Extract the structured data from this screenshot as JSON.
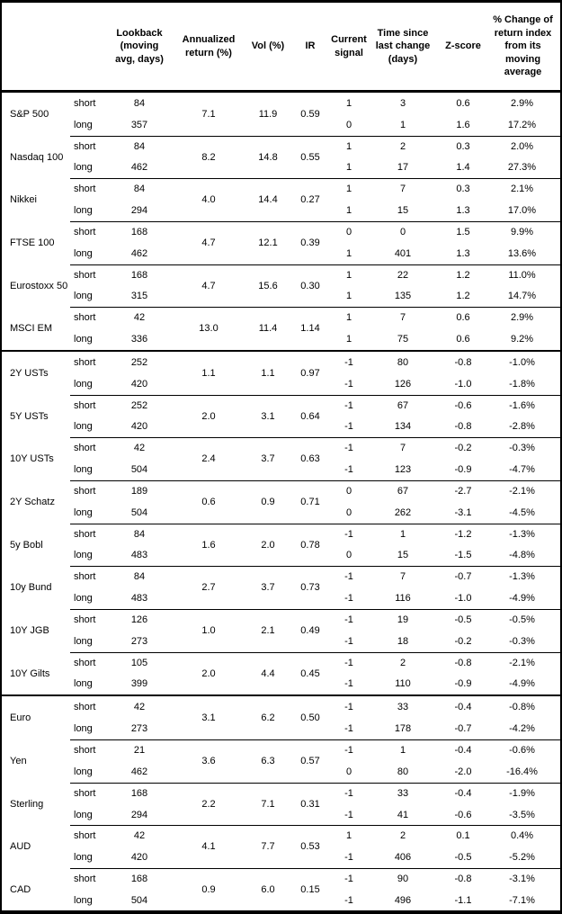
{
  "colors": {
    "text": "#000000",
    "background": "#ffffff",
    "border": "#000000"
  },
  "table": {
    "header": {
      "asset": "",
      "leg": "",
      "lookback": "Lookback (moving avg, days)",
      "annualized_return": "Annualized return (%)",
      "vol": "Vol (%)",
      "ir": "IR",
      "current_signal": "Current signal",
      "time_since": "Time since last change (days)",
      "zscore": "Z-score",
      "pct_change": "% Change of return index from its moving average"
    },
    "sections": [
      {
        "assets": [
          {
            "name": "S&P 500",
            "annualized_return": "7.1",
            "vol": "11.9",
            "ir": "0.59",
            "rows": [
              {
                "leg": "short",
                "lookback": "84",
                "signal": "1",
                "time_since": "3",
                "zscore": "0.6",
                "pct_change": "2.9%"
              },
              {
                "leg": "long",
                "lookback": "357",
                "signal": "0",
                "time_since": "1",
                "zscore": "1.6",
                "pct_change": "17.2%"
              }
            ]
          },
          {
            "name": "Nasdaq 100",
            "annualized_return": "8.2",
            "vol": "14.8",
            "ir": "0.55",
            "rows": [
              {
                "leg": "short",
                "lookback": "84",
                "signal": "1",
                "time_since": "2",
                "zscore": "0.3",
                "pct_change": "2.0%"
              },
              {
                "leg": "long",
                "lookback": "462",
                "signal": "1",
                "time_since": "17",
                "zscore": "1.4",
                "pct_change": "27.3%"
              }
            ]
          },
          {
            "name": "Nikkei",
            "annualized_return": "4.0",
            "vol": "14.4",
            "ir": "0.27",
            "rows": [
              {
                "leg": "short",
                "lookback": "84",
                "signal": "1",
                "time_since": "7",
                "zscore": "0.3",
                "pct_change": "2.1%"
              },
              {
                "leg": "long",
                "lookback": "294",
                "signal": "1",
                "time_since": "15",
                "zscore": "1.3",
                "pct_change": "17.0%"
              }
            ]
          },
          {
            "name": "FTSE 100",
            "annualized_return": "4.7",
            "vol": "12.1",
            "ir": "0.39",
            "rows": [
              {
                "leg": "short",
                "lookback": "168",
                "signal": "0",
                "time_since": "0",
                "zscore": "1.5",
                "pct_change": "9.9%"
              },
              {
                "leg": "long",
                "lookback": "462",
                "signal": "1",
                "time_since": "401",
                "zscore": "1.3",
                "pct_change": "13.6%"
              }
            ]
          },
          {
            "name": "Eurostoxx 50",
            "annualized_return": "4.7",
            "vol": "15.6",
            "ir": "0.30",
            "rows": [
              {
                "leg": "short",
                "lookback": "168",
                "signal": "1",
                "time_since": "22",
                "zscore": "1.2",
                "pct_change": "11.0%"
              },
              {
                "leg": "long",
                "lookback": "315",
                "signal": "1",
                "time_since": "135",
                "zscore": "1.2",
                "pct_change": "14.7%"
              }
            ]
          },
          {
            "name": "MSCI EM",
            "annualized_return": "13.0",
            "vol": "11.4",
            "ir": "1.14",
            "rows": [
              {
                "leg": "short",
                "lookback": "42",
                "signal": "1",
                "time_since": "7",
                "zscore": "0.6",
                "pct_change": "2.9%"
              },
              {
                "leg": "long",
                "lookback": "336",
                "signal": "1",
                "time_since": "75",
                "zscore": "0.6",
                "pct_change": "9.2%"
              }
            ]
          }
        ]
      },
      {
        "assets": [
          {
            "name": "2Y USTs",
            "annualized_return": "1.1",
            "vol": "1.1",
            "ir": "0.97",
            "rows": [
              {
                "leg": "short",
                "lookback": "252",
                "signal": "-1",
                "time_since": "80",
                "zscore": "-0.8",
                "pct_change": "-1.0%"
              },
              {
                "leg": "long",
                "lookback": "420",
                "signal": "-1",
                "time_since": "126",
                "zscore": "-1.0",
                "pct_change": "-1.8%"
              }
            ]
          },
          {
            "name": "5Y USTs",
            "annualized_return": "2.0",
            "vol": "3.1",
            "ir": "0.64",
            "rows": [
              {
                "leg": "short",
                "lookback": "252",
                "signal": "-1",
                "time_since": "67",
                "zscore": "-0.6",
                "pct_change": "-1.6%"
              },
              {
                "leg": "long",
                "lookback": "420",
                "signal": "-1",
                "time_since": "134",
                "zscore": "-0.8",
                "pct_change": "-2.8%"
              }
            ]
          },
          {
            "name": "10Y USTs",
            "annualized_return": "2.4",
            "vol": "3.7",
            "ir": "0.63",
            "rows": [
              {
                "leg": "short",
                "lookback": "42",
                "signal": "-1",
                "time_since": "7",
                "zscore": "-0.2",
                "pct_change": "-0.3%"
              },
              {
                "leg": "long",
                "lookback": "504",
                "signal": "-1",
                "time_since": "123",
                "zscore": "-0.9",
                "pct_change": "-4.7%"
              }
            ]
          },
          {
            "name": "2Y Schatz",
            "annualized_return": "0.6",
            "vol": "0.9",
            "ir": "0.71",
            "rows": [
              {
                "leg": "short",
                "lookback": "189",
                "signal": "0",
                "time_since": "67",
                "zscore": "-2.7",
                "pct_change": "-2.1%"
              },
              {
                "leg": "long",
                "lookback": "504",
                "signal": "0",
                "time_since": "262",
                "zscore": "-3.1",
                "pct_change": "-4.5%"
              }
            ]
          },
          {
            "name": "5y Bobl",
            "annualized_return": "1.6",
            "vol": "2.0",
            "ir": "0.78",
            "rows": [
              {
                "leg": "short",
                "lookback": "84",
                "signal": "-1",
                "time_since": "1",
                "zscore": "-1.2",
                "pct_change": "-1.3%"
              },
              {
                "leg": "long",
                "lookback": "483",
                "signal": "0",
                "time_since": "15",
                "zscore": "-1.5",
                "pct_change": "-4.8%"
              }
            ]
          },
          {
            "name": "10y Bund",
            "annualized_return": "2.7",
            "vol": "3.7",
            "ir": "0.73",
            "rows": [
              {
                "leg": "short",
                "lookback": "84",
                "signal": "-1",
                "time_since": "7",
                "zscore": "-0.7",
                "pct_change": "-1.3%"
              },
              {
                "leg": "long",
                "lookback": "483",
                "signal": "-1",
                "time_since": "116",
                "zscore": "-1.0",
                "pct_change": "-4.9%"
              }
            ]
          },
          {
            "name": "10Y JGB",
            "annualized_return": "1.0",
            "vol": "2.1",
            "ir": "0.49",
            "rows": [
              {
                "leg": "short",
                "lookback": "126",
                "signal": "-1",
                "time_since": "19",
                "zscore": "-0.5",
                "pct_change": "-0.5%"
              },
              {
                "leg": "long",
                "lookback": "273",
                "signal": "-1",
                "time_since": "18",
                "zscore": "-0.2",
                "pct_change": "-0.3%"
              }
            ]
          },
          {
            "name": "10Y Gilts",
            "annualized_return": "2.0",
            "vol": "4.4",
            "ir": "0.45",
            "rows": [
              {
                "leg": "short",
                "lookback": "105",
                "signal": "-1",
                "time_since": "2",
                "zscore": "-0.8",
                "pct_change": "-2.1%"
              },
              {
                "leg": "long",
                "lookback": "399",
                "signal": "-1",
                "time_since": "110",
                "zscore": "-0.9",
                "pct_change": "-4.9%"
              }
            ]
          }
        ]
      },
      {
        "assets": [
          {
            "name": "Euro",
            "annualized_return": "3.1",
            "vol": "6.2",
            "ir": "0.50",
            "rows": [
              {
                "leg": "short",
                "lookback": "42",
                "signal": "-1",
                "time_since": "33",
                "zscore": "-0.4",
                "pct_change": "-0.8%"
              },
              {
                "leg": "long",
                "lookback": "273",
                "signal": "-1",
                "time_since": "178",
                "zscore": "-0.7",
                "pct_change": "-4.2%"
              }
            ]
          },
          {
            "name": "Yen",
            "annualized_return": "3.6",
            "vol": "6.3",
            "ir": "0.57",
            "rows": [
              {
                "leg": "short",
                "lookback": "21",
                "signal": "-1",
                "time_since": "1",
                "zscore": "-0.4",
                "pct_change": "-0.6%"
              },
              {
                "leg": "long",
                "lookback": "462",
                "signal": "0",
                "time_since": "80",
                "zscore": "-2.0",
                "pct_change": "-16.4%"
              }
            ]
          },
          {
            "name": "Sterling",
            "annualized_return": "2.2",
            "vol": "7.1",
            "ir": "0.31",
            "rows": [
              {
                "leg": "short",
                "lookback": "168",
                "signal": "-1",
                "time_since": "33",
                "zscore": "-0.4",
                "pct_change": "-1.9%"
              },
              {
                "leg": "long",
                "lookback": "294",
                "signal": "-1",
                "time_since": "41",
                "zscore": "-0.6",
                "pct_change": "-3.5%"
              }
            ]
          },
          {
            "name": "AUD",
            "annualized_return": "4.1",
            "vol": "7.7",
            "ir": "0.53",
            "rows": [
              {
                "leg": "short",
                "lookback": "42",
                "signal": "1",
                "time_since": "2",
                "zscore": "0.1",
                "pct_change": "0.4%"
              },
              {
                "leg": "long",
                "lookback": "420",
                "signal": "-1",
                "time_since": "406",
                "zscore": "-0.5",
                "pct_change": "-5.2%"
              }
            ]
          },
          {
            "name": "CAD",
            "annualized_return": "0.9",
            "vol": "6.0",
            "ir": "0.15",
            "rows": [
              {
                "leg": "short",
                "lookback": "168",
                "signal": "-1",
                "time_since": "90",
                "zscore": "-0.8",
                "pct_change": "-3.1%"
              },
              {
                "leg": "long",
                "lookback": "504",
                "signal": "-1",
                "time_since": "496",
                "zscore": "-1.1",
                "pct_change": "-7.1%"
              }
            ]
          }
        ]
      }
    ]
  }
}
